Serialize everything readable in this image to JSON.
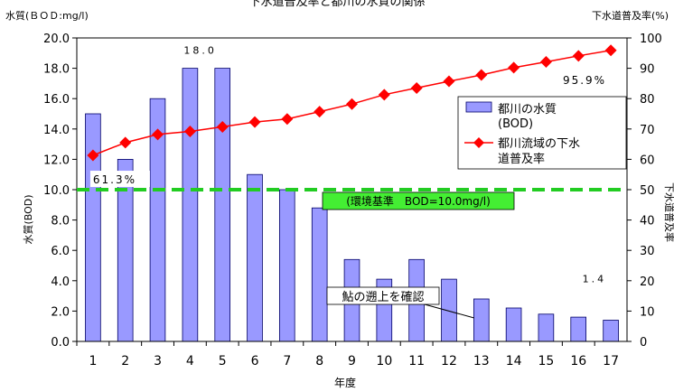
{
  "chart_data": {
    "type": "bar",
    "title": "下水道普及率と都川の水質の関係",
    "xlabel": "年度",
    "ylabel_left": "水質(BOD)",
    "ylabel_right": "下水道普及率",
    "unit_left": "水質(ＢＯＤ:mg/l)",
    "unit_right": "下水道普及率(%)",
    "categories": [
      "1",
      "2",
      "3",
      "4",
      "5",
      "6",
      "7",
      "8",
      "9",
      "10",
      "11",
      "12",
      "13",
      "14",
      "15",
      "16",
      "17"
    ],
    "ylim_left": [
      0,
      20
    ],
    "ylim_right": [
      0,
      100
    ],
    "yticks_left": [
      "0.0",
      "2.0",
      "4.0",
      "6.0",
      "8.0",
      "10.0",
      "12.0",
      "14.0",
      "16.0",
      "18.0",
      "20.0"
    ],
    "yticks_right": [
      "0",
      "10",
      "20",
      "30",
      "40",
      "50",
      "60",
      "70",
      "80",
      "90",
      "100"
    ],
    "series": [
      {
        "name": "都川の水質\n(BOD)",
        "type": "bar",
        "axis": "left",
        "color": "#9999ff",
        "values": [
          15.0,
          12.0,
          16.0,
          18.0,
          18.0,
          11.0,
          10.0,
          8.8,
          5.4,
          4.1,
          5.4,
          4.1,
          2.8,
          2.2,
          1.8,
          1.6,
          1.4
        ]
      },
      {
        "name": "都川流域の下水\n道普及率",
        "type": "line",
        "axis": "right",
        "color": "#ff0000",
        "values": [
          61.3,
          65.5,
          68.2,
          69.2,
          70.7,
          72.3,
          73.3,
          75.7,
          78.2,
          81.3,
          83.5,
          85.7,
          87.8,
          90.2,
          92.1,
          94.1,
          95.9
        ]
      }
    ],
    "reference_line": {
      "value": 10.0,
      "axis": "left",
      "color": "#22cc22",
      "label": "(環境基準　BOD=10.0mg/l)"
    },
    "annotations": [
      {
        "text": "18.0",
        "at_index": 3,
        "axis": "left",
        "value": 18.0
      },
      {
        "text": "61.3%",
        "at_index": 0,
        "axis": "right",
        "value": 61.3
      },
      {
        "text": "95.9%",
        "at_index": 16,
        "axis": "right",
        "value": 95.9
      },
      {
        "text": "1.4",
        "at_index": 16,
        "axis": "left",
        "value": 1.4
      },
      {
        "text": "鮎の遡上を確認",
        "at_index": 12,
        "axis": "left",
        "value": 2.8,
        "callout": true
      }
    ],
    "legend_position": "right",
    "grid": false
  }
}
